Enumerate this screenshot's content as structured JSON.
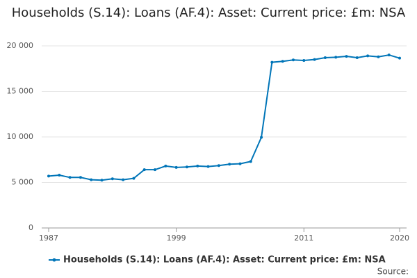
{
  "chart_data": {
    "type": "line",
    "title": "Households (S.14): Loans (AF.4): Asset: Current price: £m: NSA",
    "x": [
      1987,
      1988,
      1989,
      1990,
      1991,
      1992,
      1993,
      1994,
      1995,
      1996,
      1997,
      1998,
      1999,
      2000,
      2001,
      2002,
      2003,
      2004,
      2005,
      2006,
      2007,
      2008,
      2009,
      2010,
      2011,
      2012,
      2013,
      2014,
      2015,
      2016,
      2017,
      2018,
      2019,
      2020
    ],
    "series": [
      {
        "name": "Households (S.14): Loans (AF.4): Asset: Current price: £m: NSA",
        "color": "#0075b8",
        "values": [
          5700,
          5800,
          5550,
          5550,
          5300,
          5250,
          5400,
          5300,
          5450,
          6400,
          6400,
          6800,
          6650,
          6700,
          6800,
          6750,
          6850,
          7000,
          7050,
          7300,
          9950,
          18200,
          18300,
          18450,
          18400,
          18500,
          18700,
          18750,
          18850,
          18700,
          18900,
          18800,
          19000,
          18650
        ]
      }
    ],
    "xlim": [
      1987,
      2020
    ],
    "xticks": [
      1987,
      1999,
      2011,
      2020
    ],
    "ylim": [
      0,
      20000
    ],
    "yticks": [
      0,
      {
        "value": 5000,
        "label": "5 000"
      },
      {
        "value": 10000,
        "label": "10 000"
      },
      {
        "value": 15000,
        "label": "15 000"
      },
      {
        "value": 20000,
        "label": "20 000"
      }
    ],
    "grid": true,
    "source": "Source:"
  }
}
